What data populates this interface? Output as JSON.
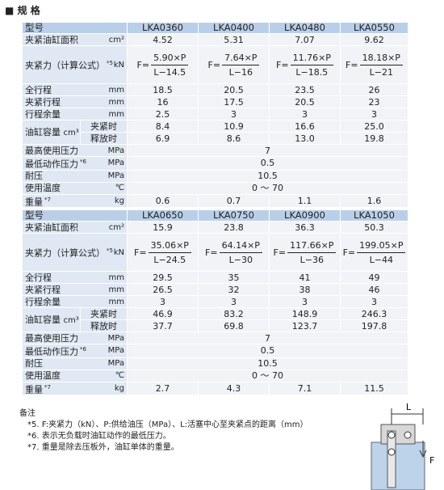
{
  "title": "■ 规 格",
  "tables": [
    {
      "header": [
        "型号",
        "LKA0360",
        "LKA0400",
        "LKA0480",
        "LKA0550"
      ],
      "rows": [
        {
          "label": "夹紧油缸面积",
          "unit": "cm²",
          "values": [
            "4.52",
            "5.31",
            "7.07",
            "9.62"
          ]
        },
        {
          "label": "夹紧力（计算公式）",
          "note": "*5",
          "unit": "kN",
          "formulas": [
            {
              "prefix": "F=",
              "numerator": "5.90×P",
              "denominator": "L−14.5"
            },
            {
              "prefix": "F=",
              "numerator": "7.64×P",
              "denominator": "L−16"
            },
            {
              "prefix": "F=",
              "numerator": "11.76×P",
              "denominator": "L−18.5"
            },
            {
              "prefix": "F=",
              "numerator": "18.18×P",
              "denominator": "L−21"
            }
          ]
        },
        {
          "label": "全行程",
          "unit": "mm",
          "values": [
            "18.5",
            "20.5",
            "23.5",
            "26"
          ]
        },
        {
          "label": "夹紧行程",
          "unit": "mm",
          "values": [
            "16",
            "17.5",
            "20.5",
            "23"
          ]
        },
        {
          "label": "行程余量",
          "unit": "mm",
          "values": [
            "2.5",
            "3",
            "3",
            "3"
          ]
        },
        {
          "label": "油缸容量",
          "unit": "cm³",
          "subrows": [
            {
              "label": "夹紧时",
              "values": [
                "8.4",
                "10.9",
                "16.6",
                "25.0"
              ]
            },
            {
              "label": "释放时",
              "values": [
                "6.9",
                "8.6",
                "13.0",
                "19.8"
              ]
            }
          ]
        },
        {
          "label": "最高使用压力",
          "unit": "MPa",
          "value": "7"
        },
        {
          "label": "最低动作压力",
          "note": "*6",
          "unit": "MPa",
          "value": "0.5"
        },
        {
          "label": "耐压",
          "unit": "MPa",
          "value": "10.5"
        },
        {
          "label": "使用温度",
          "unit": "℃",
          "value": "0 ～ 70"
        },
        {
          "label": "重量",
          "note": "*7",
          "unit": "kg",
          "values": [
            "0.6",
            "0.7",
            "1.1",
            "1.6"
          ]
        }
      ]
    },
    {
      "header": [
        "型号",
        "LKA0650",
        "LKA0750",
        "LKA0900",
        "LKA1050"
      ],
      "rows": [
        {
          "label": "夹紧油缸面积",
          "unit": "cm²",
          "values": [
            "15.9",
            "23.8",
            "36.3",
            "50.3"
          ]
        },
        {
          "label": "夹紧力（计算公式）",
          "note": "*5",
          "unit": "kN",
          "formulas": [
            {
              "prefix": "F=",
              "numerator": "35.06×P",
              "denominator": "L−24.5"
            },
            {
              "prefix": "F=",
              "numerator": "64.14×P",
              "denominator": "L−30"
            },
            {
              "prefix": "F=",
              "numerator": "117.66×P",
              "denominator": "L−36"
            },
            {
              "prefix": "F=",
              "numerator": "199.05×P",
              "denominator": "L−44"
            }
          ]
        },
        {
          "label": "全行程",
          "unit": "mm",
          "values": [
            "29.5",
            "35",
            "41",
            "49"
          ]
        },
        {
          "label": "夹紧行程",
          "unit": "mm",
          "values": [
            "26.5",
            "32",
            "38",
            "46"
          ]
        },
        {
          "label": "行程余量",
          "unit": "mm",
          "values": [
            "3",
            "3",
            "3",
            "3"
          ]
        },
        {
          "label": "油缸容量",
          "unit": "cm³",
          "subrows": [
            {
              "label": "夹紧时",
              "values": [
                "46.9",
                "83.2",
                "148.9",
                "246.3"
              ]
            },
            {
              "label": "释放时",
              "values": [
                "37.7",
                "69.8",
                "123.7",
                "197.8"
              ]
            }
          ]
        },
        {
          "label": "最高使用压力",
          "unit": "MPa",
          "value": "7"
        },
        {
          "label": "最低动作压力",
          "note": "*6",
          "unit": "MPa",
          "value": "0.5"
        },
        {
          "label": "耐压",
          "unit": "MPa",
          "value": "10.5"
        },
        {
          "label": "使用温度",
          "unit": "℃",
          "value": "0 ～ 70"
        },
        {
          "label": "重量",
          "note": "*7",
          "unit": "kg",
          "values": [
            "2.7",
            "4.3",
            "7.1",
            "11.5"
          ]
        }
      ]
    }
  ],
  "notes": {
    "title": "备注",
    "items": [
      "*5. F:夹紧力（kN）、P:供给油压（MPa）、L:活塞中心至夹紧点的距离（mm）",
      "*6. 表示无负载时油缸动作的最低压力。",
      "*7. 重量是除去压板外，油缸单体的重量。"
    ]
  },
  "diagram": {
    "labels": [
      "L",
      "F"
    ]
  }
}
